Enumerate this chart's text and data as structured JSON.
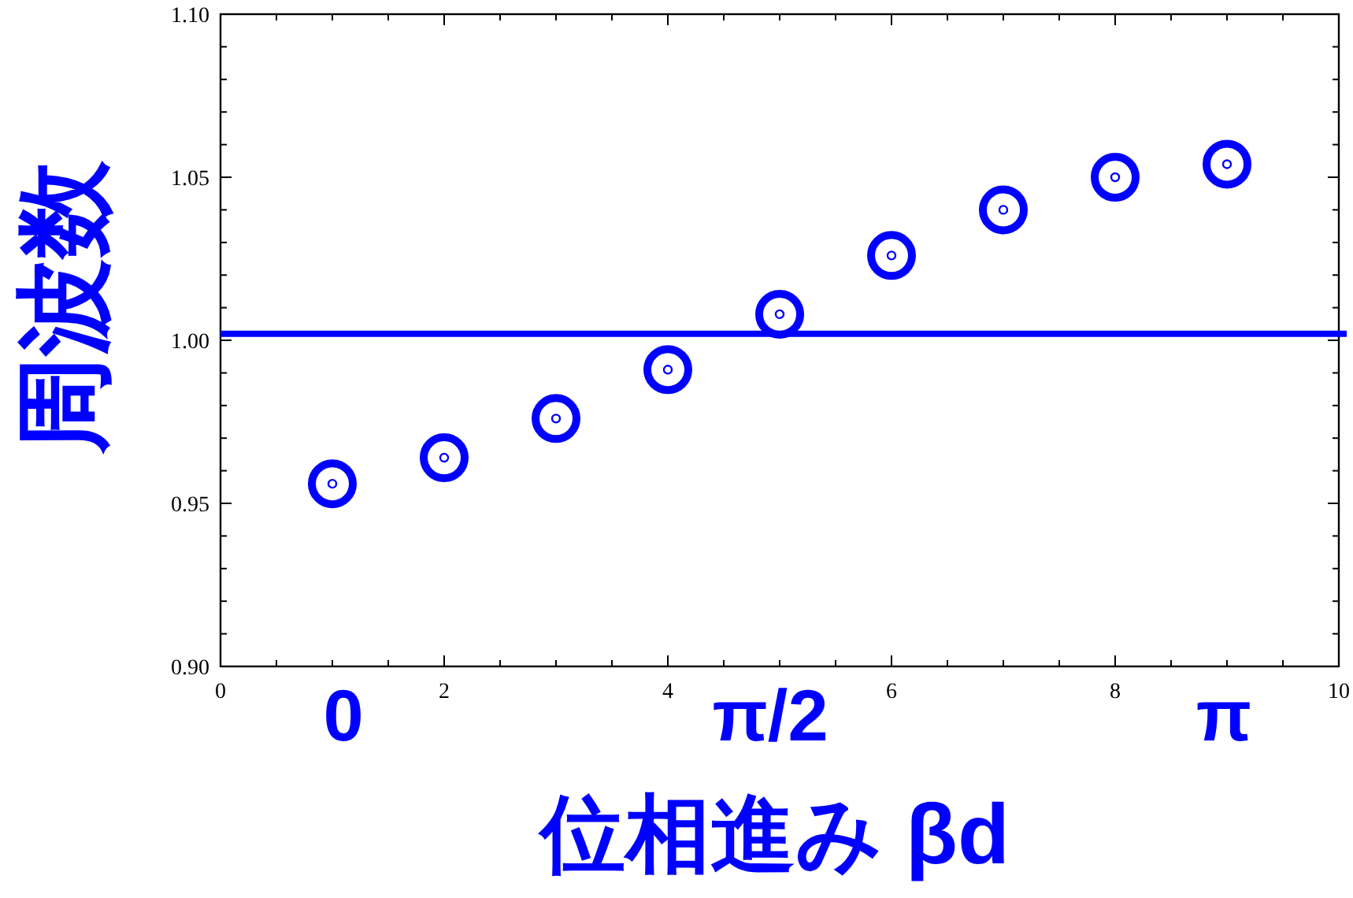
{
  "chart_data": {
    "type": "scatter",
    "xlabel": "位相進み βd",
    "ylabel": "周波数",
    "x": [
      1,
      2,
      3,
      4,
      5,
      6,
      7,
      8,
      9
    ],
    "series": [
      {
        "color": "#0000ff",
        "values": [
          0.956,
          0.964,
          0.976,
          0.991,
          1.008,
          1.026,
          1.04,
          1.05,
          1.054
        ]
      }
    ],
    "marker": "circle",
    "xlim": [
      0,
      10
    ],
    "ylim": [
      0.9,
      1.1
    ],
    "xticks": [
      0,
      {
        "value": 0.5,
        "label": null
      },
      {
        "value": 1,
        "label": null
      },
      {
        "value": 1.5,
        "label": null
      },
      2,
      {
        "value": 2.5,
        "label": null
      },
      {
        "value": 3,
        "label": null
      },
      {
        "value": 3.5,
        "label": null
      },
      4,
      {
        "value": 4.5,
        "label": null
      },
      {
        "value": 5,
        "label": null
      },
      {
        "value": 5.5,
        "label": null
      },
      6,
      {
        "value": 6.5,
        "label": null
      },
      {
        "value": 7,
        "label": null
      },
      {
        "value": 7.5,
        "label": null
      },
      8,
      {
        "value": 8.5,
        "label": null
      },
      {
        "value": 9,
        "label": null
      },
      {
        "value": 9.5,
        "label": null
      },
      10
    ],
    "yticks": [
      {
        "value": 0.9,
        "label": "0.90"
      },
      {
        "value": 0.91,
        "label": null
      },
      {
        "value": 0.92,
        "label": null
      },
      {
        "value": 0.93,
        "label": null
      },
      {
        "value": 0.94,
        "label": null
      },
      {
        "value": 0.95,
        "label": "0.95"
      },
      {
        "value": 0.96,
        "label": null
      },
      {
        "value": 0.97,
        "label": null
      },
      {
        "value": 0.98,
        "label": null
      },
      {
        "value": 0.99,
        "label": null
      },
      {
        "value": 1.0,
        "label": "1.00"
      },
      {
        "value": 1.01,
        "label": null
      },
      {
        "value": 1.02,
        "label": null
      },
      {
        "value": 1.03,
        "label": null
      },
      {
        "value": 1.04,
        "label": null
      },
      {
        "value": 1.05,
        "label": "1.05"
      },
      {
        "value": 1.06,
        "label": null
      },
      {
        "value": 1.07,
        "label": null
      },
      {
        "value": 1.08,
        "label": null
      },
      {
        "value": 1.09,
        "label": null
      },
      {
        "value": 1.1,
        "label": "1.10"
      }
    ],
    "ref_lines": [
      {
        "axis": "y",
        "value": 1.002,
        "color": "#0000ff"
      }
    ],
    "annotations": [
      "0",
      "π/2",
      "π"
    ]
  }
}
